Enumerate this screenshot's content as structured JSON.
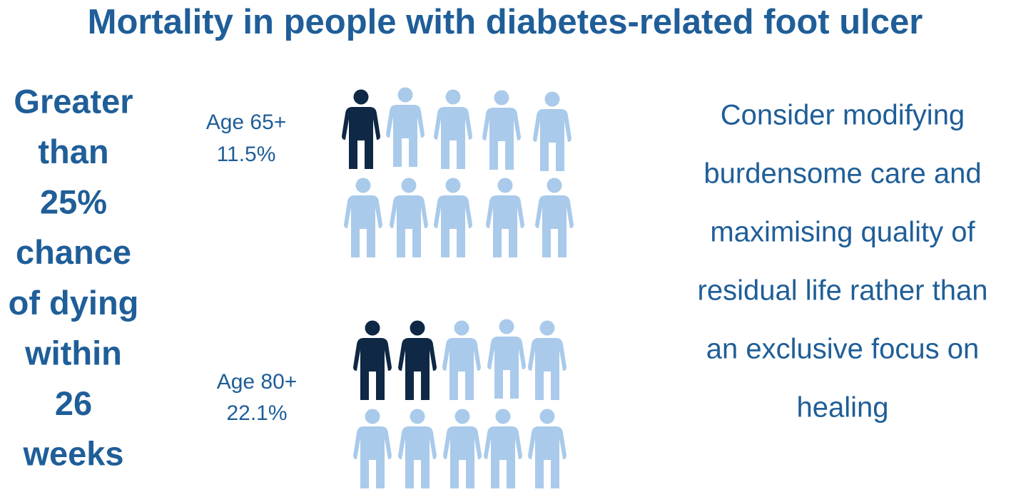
{
  "title": "Mortality in people with diabetes-related foot ulcer",
  "summary": {
    "lines": [
      "Greater",
      "than",
      "25%",
      "chance",
      "of dying",
      "within",
      "26",
      "weeks"
    ]
  },
  "groups": [
    {
      "label": "Age 65+",
      "value": "11.5%"
    },
    {
      "label": "Age 80+",
      "value": "22.1%"
    }
  ],
  "note": {
    "lines": [
      "Consider modifying",
      "burdensome care and",
      "maximising quality of",
      "residual life rather than",
      "an exclusive focus on",
      "healing"
    ]
  }
}
